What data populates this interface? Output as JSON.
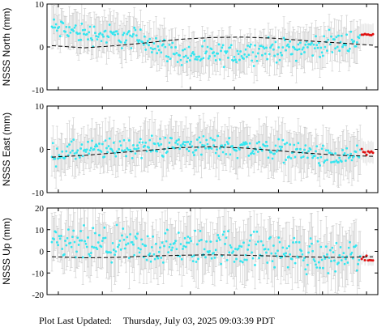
{
  "footer": {
    "label": "Plot Last Updated:",
    "timestamp": "Thursday, July 03, 2025 09:03:39 PDT"
  },
  "colors": {
    "points": "#33e6f0",
    "recent_points": "#e01010",
    "error_bars": "#c8c8c8",
    "model_line": "#000000",
    "axes": "#000000"
  },
  "chart_data": [
    {
      "type": "scatter",
      "ylabel": "NSSS North (mm)",
      "ylim": [
        -10,
        10
      ],
      "yticks": [
        -10,
        0,
        10
      ],
      "ytick_labels": [
        "-10",
        "0",
        "10"
      ],
      "xticks_count": 8,
      "grid": false,
      "series": [
        {
          "style": "points-with-errorbars",
          "trend": [
            [
              0,
              4.5
            ],
            [
              0.1,
              3.2
            ],
            [
              0.2,
              2.5
            ],
            [
              0.3,
              1.5
            ],
            [
              0.38,
              -1.5
            ],
            [
              0.45,
              -2.2
            ],
            [
              0.55,
              -1.8
            ],
            [
              0.65,
              -0.8
            ],
            [
              0.75,
              -0.4
            ],
            [
              0.85,
              0.5
            ],
            [
              0.92,
              1.2
            ],
            [
              0.96,
              1.8
            ]
          ],
          "count": 300,
          "spread": 1.6,
          "error_halfwidth": 4.0
        },
        {
          "style": "recent-points",
          "trend": [
            [
              0.965,
              2.8
            ],
            [
              1.0,
              2.8
            ]
          ],
          "count": 8,
          "spread": 0.5
        },
        {
          "style": "dashed-model",
          "x": [
            0,
            0.1,
            0.2,
            0.3,
            0.4,
            0.5,
            0.6,
            0.7,
            0.8,
            0.9,
            1.0
          ],
          "y": [
            0.3,
            -0.2,
            0.3,
            1.0,
            1.8,
            2.2,
            2.3,
            2.0,
            1.4,
            0.9,
            0.4
          ]
        }
      ]
    },
    {
      "type": "scatter",
      "ylabel": "NSSS East (mm)",
      "ylim": [
        -10,
        10
      ],
      "yticks": [
        -10,
        0,
        10
      ],
      "ytick_labels": [
        "-10",
        "0",
        "10"
      ],
      "xticks_count": 8,
      "grid": false,
      "series": [
        {
          "style": "points-with-errorbars",
          "trend": [
            [
              0,
              -1.0
            ],
            [
              0.2,
              0.2
            ],
            [
              0.4,
              1.0
            ],
            [
              0.55,
              0.6
            ],
            [
              0.7,
              0.0
            ],
            [
              0.8,
              -0.8
            ],
            [
              0.88,
              -2.5
            ],
            [
              0.95,
              -1.0
            ]
          ],
          "count": 300,
          "spread": 1.5,
          "error_halfwidth": 4.5
        },
        {
          "style": "recent-points",
          "trend": [
            [
              0.965,
              -0.5
            ],
            [
              1.0,
              -1.2
            ]
          ],
          "count": 8,
          "spread": 0.6
        },
        {
          "style": "dashed-model",
          "x": [
            0,
            0.1,
            0.2,
            0.3,
            0.4,
            0.5,
            0.6,
            0.7,
            0.8,
            0.9,
            1.0
          ],
          "y": [
            -1.8,
            -1.4,
            -0.8,
            -0.2,
            0.4,
            0.6,
            0.3,
            -0.3,
            -0.9,
            -1.4,
            -1.6
          ]
        }
      ]
    },
    {
      "type": "scatter",
      "ylabel": "NSSS Up (mm)",
      "ylim": [
        -20,
        20
      ],
      "yticks": [
        -20,
        -10,
        0,
        10,
        20
      ],
      "ytick_labels": [
        "-20",
        "-10",
        "0",
        "10",
        "20"
      ],
      "xticks_count": 8,
      "grid": false,
      "series": [
        {
          "style": "points-with-errorbars",
          "trend": [
            [
              0,
              3.5
            ],
            [
              0.3,
              1.5
            ],
            [
              0.55,
              2.0
            ],
            [
              0.7,
              0.0
            ],
            [
              0.85,
              -3.0
            ],
            [
              0.95,
              -1.5
            ]
          ],
          "count": 300,
          "spread": 5.0,
          "error_halfwidth": 11.0
        },
        {
          "style": "recent-points",
          "trend": [
            [
              0.965,
              -3.5
            ],
            [
              1.0,
              -4.5
            ]
          ],
          "count": 8,
          "spread": 1.5
        },
        {
          "style": "dashed-model",
          "x": [
            0,
            0.1,
            0.2,
            0.3,
            0.4,
            0.5,
            0.6,
            0.7,
            0.8,
            0.9,
            1.0
          ],
          "y": [
            -2.5,
            -3.0,
            -2.8,
            -2.2,
            -1.8,
            -1.6,
            -1.8,
            -2.2,
            -2.6,
            -2.8,
            -2.5
          ]
        }
      ]
    }
  ]
}
